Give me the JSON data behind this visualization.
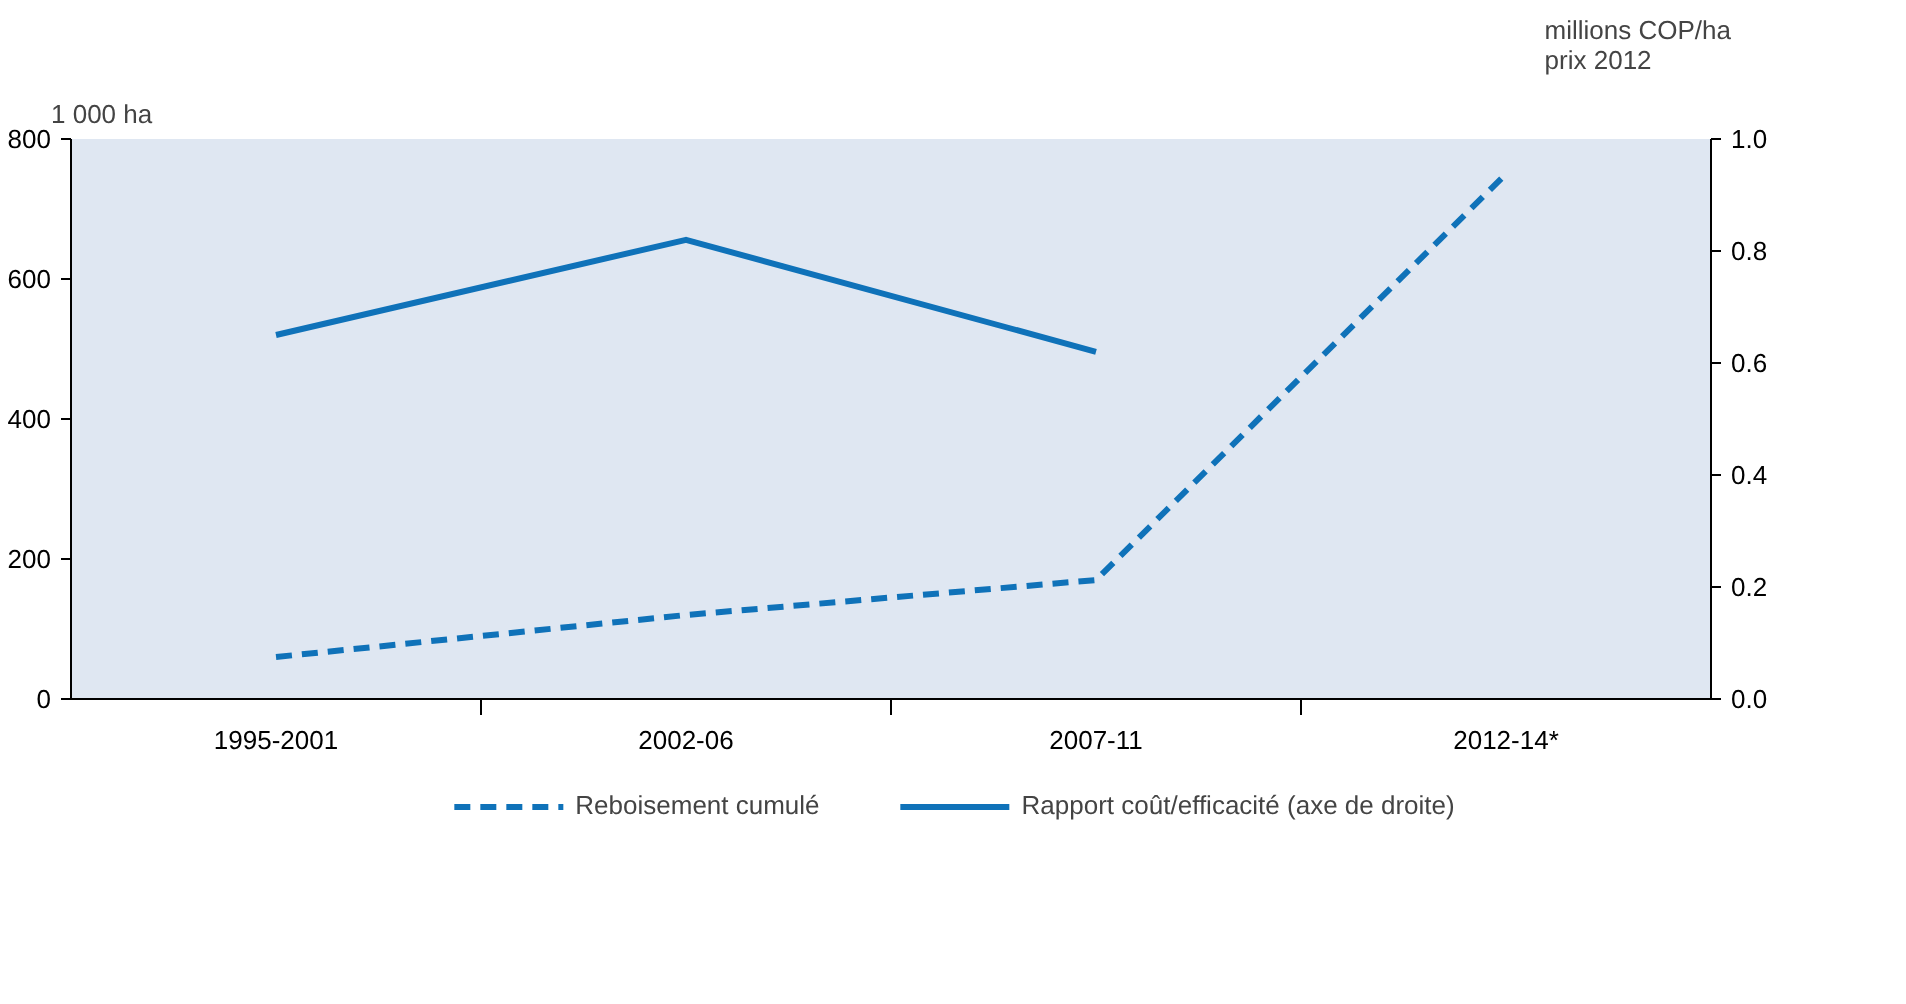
{
  "chart_data": {
    "type": "line",
    "ylabel": "1 000 ha",
    "y2label": "millions COP/ha\nprix 2012",
    "categories": [
      "1995-2001",
      "2002-06",
      "2007-11",
      "2012-14*"
    ],
    "series": [
      {
        "name": "Reboisement cumulé",
        "color": "#0f72b9",
        "line_style": "dashed",
        "values": [
          60,
          120,
          170,
          750
        ]
      },
      {
        "name": "Rapport coût/efficacité (axe de droite)",
        "color": "#0f72b9",
        "line_style": "solid",
        "axis": "y2",
        "values": [
          0.65,
          0.82,
          0.62,
          null
        ]
      }
    ],
    "ylim": [
      0,
      800
    ],
    "yticks": [
      0,
      200,
      400,
      600,
      800
    ],
    "y2lim": [
      0,
      1.0
    ],
    "y2ticks": [
      {
        "value": 0,
        "label": "0.0"
      },
      {
        "value": 0.2,
        "label": "0.2"
      },
      {
        "value": 0.4,
        "label": "0.4"
      },
      {
        "value": 0.6,
        "label": "0.6"
      },
      {
        "value": 0.8,
        "label": "0.8"
      },
      {
        "value": 1.0,
        "label": "1.0"
      }
    ],
    "grid": false,
    "legend": "bottom",
    "marker": "none"
  }
}
